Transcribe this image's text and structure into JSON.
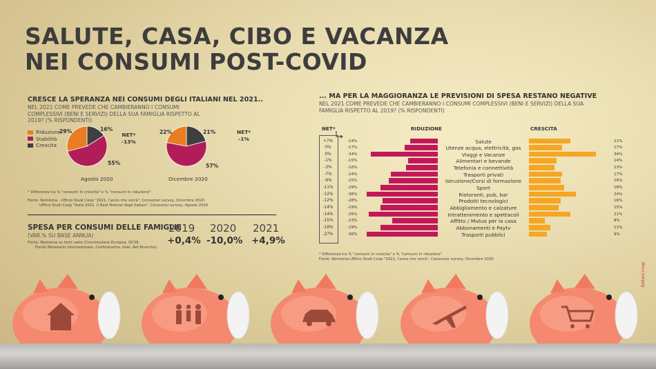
{
  "title_line1": "SALUTE, CASA, CIBO E VACANZA",
  "title_line2": "NEI CONSUMI POST-COVID",
  "left": {
    "heading": "CRESCE LA SPERANZA NEI CONSUMI DEGLI ITALIANI NEL 2021..",
    "subheading": "NEL 2021 COME PREVEDE CHE CAMBIERANNO I CONSUMI COMPLESSIVI (BENI E SERVIZI) DELLA SUA FAMIGLIA RISPETTO AL 2019? (% RISPONDENTI)",
    "legend": [
      "Riduzione",
      "Stabilità",
      "Crescita"
    ],
    "footnote": "* Differenza tra % \"consumi in crescita\" e % \"consumi in riduzione\"",
    "source1": "Fonte: Nomisma - Ufficio Studi Coop \"2021, l'anno che verrà\", Consumer survey, Dicembre 2020",
    "source2": "Ufficio Studi Coop \"Italia 2021. Il Next Normal degli italiani\", Consumer survey, Agosto 2020"
  },
  "colors": {
    "riduzione": "#ea7d21",
    "stabilita": "#b21d59",
    "crescita": "#3f3f3f",
    "bar_red": "#c2185b",
    "bar_orange": "#f5a623"
  },
  "pies": [
    {
      "caption": "Agosto 2020",
      "net_label": "NET*",
      "net_value": "-13%",
      "riduzione": 29,
      "stabilita": 55,
      "crescita": 16,
      "lbl_riduzione": "29%",
      "lbl_stabilita": "55%",
      "lbl_crescita": "16%"
    },
    {
      "caption": "Dicembre 2020",
      "net_label": "NET*",
      "net_value": "-1%",
      "riduzione": 22,
      "stabilita": 57,
      "crescita": 21,
      "lbl_riduzione": "22%",
      "lbl_stabilita": "57%",
      "lbl_crescita": "21%"
    }
  ],
  "spesa": {
    "heading": "SPESA PER CONSUMI DELLE FAMIGLIE",
    "sub": "(VAR.% SU BASE ANNUA)",
    "source1": "Fonte: Nomisma su fonti varie (Commissione Europea, OCSE,",
    "source2": "Fondo Monetario Internazionale, Confindustria, Istat, Ref Ricerche)",
    "years": [
      "2019",
      "2020",
      "2021"
    ],
    "values": [
      "+0,4%",
      "-10,0%",
      "+4,9%"
    ]
  },
  "right": {
    "heading": "... MA PER LA MAGGIORANZA LE PREVISIONI DI SPESA RESTANO NEGATIVE",
    "subheading": "NEL 2021 COME PREVEDE CHE CAMBIERANNO I CONSUMI COMPLESSIVI (BENI E SERVIZI) DELLA SUA FAMIGLIA RISPETTO AL 2019? (% RISPONDENTI)",
    "net_head": "NET*",
    "riduzione_head": "RIDUZIONE",
    "crescita_head": "CRESCITA",
    "footnote": "* Differenza tra % \"consumi in crescita\" e % \"consumi in riduzione\"",
    "source": "Fonte: Nomisma-Ufficio Studi Coop \"2021, l'anno che verrà\", Consumer survey, Dicembre 2020"
  },
  "chart_data": {
    "type": "bar",
    "categories": [
      "Salute",
      "Utenze acqua, elettricità, gas",
      "Viaggi e Vacanze",
      "Alimentari e bevande",
      "Telefonia e connettività",
      "Trasporti privati",
      "Istruzione/Corsi di formazione",
      "Sport",
      "Ristoranti, pub, bar",
      "Prodotti tecnologici",
      "Abbigliamento e calzature",
      "Intrattenimento e spettacoli",
      "Affitto / Mutuo per la casa",
      "Abbonamenti e Paytv",
      "Trasporti pubblici"
    ],
    "net": [
      "+7%",
      "0%",
      "0%",
      "-1%",
      "-3%",
      "-7%",
      "-9%",
      "-11%",
      "-12%",
      "-12%",
      "-14%",
      "-14%",
      "-15%",
      "-18%",
      "-27%"
    ],
    "series": [
      {
        "name": "RIDUZIONE",
        "values": [
          -14,
          -17,
          -34,
          -15,
          -16,
          -24,
          -25,
          -29,
          -36,
          -28,
          -29,
          -35,
          -23,
          -29,
          -36
        ],
        "labels": [
          "-14%",
          "-17%",
          "-34%",
          "-15%",
          "-16%",
          "-24%",
          "-25%",
          "-29%",
          "-36%",
          "-28%",
          "-29%",
          "-35%",
          "-23%",
          "-29%",
          "-36%"
        ]
      },
      {
        "name": "CRESCITA",
        "values": [
          21,
          17,
          34,
          14,
          13,
          17,
          16,
          18,
          24,
          16,
          15,
          21,
          8,
          11,
          9
        ],
        "labels": [
          "21%",
          "17%",
          "34%",
          "14%",
          "13%",
          "17%",
          "16%",
          "18%",
          "24%",
          "16%",
          "15%",
          "21%",
          "8%",
          "11%",
          "9%"
        ]
      }
    ]
  },
  "credit": "italiani.coop"
}
